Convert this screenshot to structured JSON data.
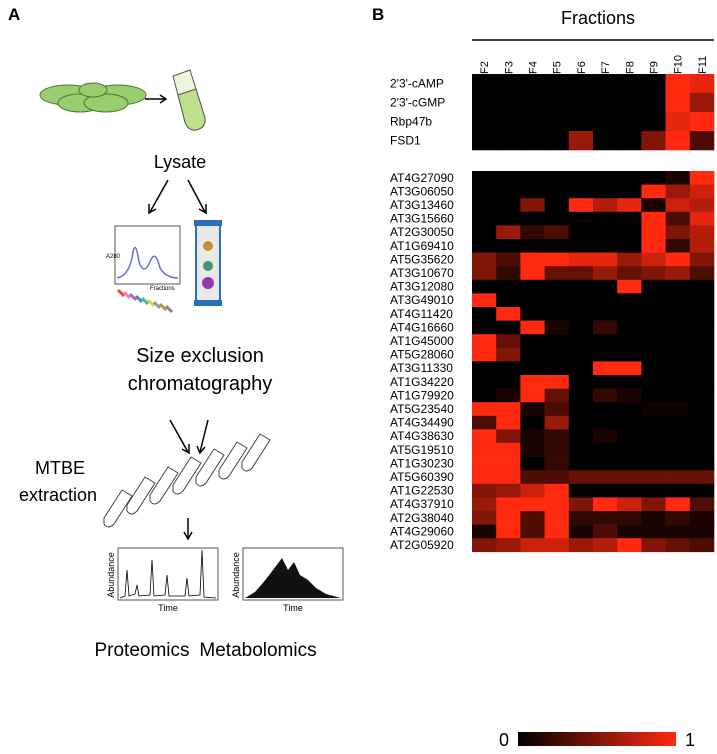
{
  "panel_a": {
    "label": "A",
    "lysate": "Lysate",
    "sec_line1": "Size exclusion",
    "sec_line2": "chromatography",
    "mtbe_line1": "MTBE",
    "mtbe_line2": "extraction",
    "fractions_small": "Fractions",
    "a280": "A280",
    "abundance_1": "Abundance",
    "time_1": "Time",
    "abundance_2": "Abundance",
    "time_2": "Time",
    "proteomics": "Proteomics",
    "metabolomics": "Metabolomics"
  },
  "chart_data": {
    "type": "heatmap",
    "panel_label": "B",
    "title": "Fractions",
    "categories": [
      "F2",
      "F3",
      "F4",
      "F5",
      "F6",
      "F7",
      "F8",
      "F9",
      "F10",
      "F11"
    ],
    "colors": [
      "#000000",
      "#ff2a10"
    ],
    "colorbar": {
      "lim": [
        0,
        1
      ],
      "ticks": [
        0,
        1
      ]
    },
    "row_groups": [
      {
        "rows": [
          "2'3'-cAMP",
          "2'3'-cGMP",
          "Rbp47b",
          "FSD1"
        ],
        "values": [
          [
            0,
            0,
            0,
            0,
            0,
            0,
            0,
            0,
            1,
            0.9
          ],
          [
            0,
            0,
            0,
            0,
            0,
            0,
            0,
            0,
            1,
            0.6
          ],
          [
            0,
            0,
            0,
            0,
            0,
            0,
            0,
            0,
            0.9,
            1
          ],
          [
            0,
            0,
            0,
            0,
            0.6,
            0,
            0,
            0.5,
            1,
            0.3
          ]
        ]
      },
      {
        "rows": [
          "AT4G27090",
          "AT3G06050",
          "AT3G13460",
          "AT3G15660",
          "AT2G30050",
          "AT1G69410",
          "AT5G35620",
          "AT3G10670",
          "AT3G12080",
          "AT3G49010",
          "AT4G11420",
          "AT4G16660",
          "AT1G45000",
          "AT5G28060",
          "AT3G11330",
          "AT1G34220",
          "AT1G79920",
          "AT5G23540",
          "AT4G34490",
          "AT4G38630",
          "AT5G19510",
          "AT1G30230",
          "AT5G60390",
          "AT1G22530",
          "AT4G37910",
          "AT2G38040",
          "AT4G29060",
          "AT2G05920"
        ],
        "values": [
          [
            0,
            0,
            0,
            0,
            0,
            0,
            0,
            0,
            0.1,
            1
          ],
          [
            0,
            0,
            0,
            0,
            0,
            0,
            0,
            1,
            0.6,
            0.8
          ],
          [
            0,
            0,
            0.5,
            0,
            1,
            0.7,
            0.9,
            0.1,
            0.8,
            0.7
          ],
          [
            0,
            0,
            0,
            0,
            0,
            0,
            0,
            1,
            0.3,
            0.9
          ],
          [
            0,
            0.6,
            0.2,
            0.3,
            0,
            0,
            0,
            1,
            0.5,
            0.7
          ],
          [
            0,
            0,
            0,
            0,
            0,
            0,
            0,
            1,
            0.2,
            0.7
          ],
          [
            0.5,
            0.3,
            1,
            1,
            0.9,
            0.9,
            0.6,
            0.8,
            1,
            0.5
          ],
          [
            0.5,
            0.2,
            1,
            0.4,
            0.4,
            0.6,
            0.4,
            0.5,
            0.6,
            0.3
          ],
          [
            0,
            0,
            0,
            0,
            0,
            0,
            1,
            0,
            0,
            0
          ],
          [
            1,
            0,
            0,
            0,
            0,
            0,
            0,
            0,
            0,
            0
          ],
          [
            0,
            1,
            0,
            0,
            0,
            0,
            0,
            0,
            0,
            0
          ],
          [
            0,
            0,
            1,
            0.1,
            0,
            0.2,
            0,
            0,
            0,
            0
          ],
          [
            1,
            0.4,
            0,
            0,
            0,
            0,
            0,
            0,
            0,
            0
          ],
          [
            1,
            0.5,
            0,
            0,
            0,
            0,
            0,
            0,
            0,
            0
          ],
          [
            0,
            0,
            0,
            0,
            0,
            1,
            1,
            0,
            0,
            0
          ],
          [
            0,
            0,
            1,
            1,
            0,
            0,
            0,
            0,
            0,
            0
          ],
          [
            0,
            0.1,
            1,
            0.4,
            0,
            0.2,
            0.1,
            0,
            0,
            0
          ],
          [
            1,
            1,
            0.1,
            0.3,
            0,
            0,
            0,
            0.05,
            0.05,
            0
          ],
          [
            0.3,
            1,
            0,
            0.6,
            0,
            0,
            0,
            0,
            0,
            0
          ],
          [
            1,
            0.5,
            0.1,
            0.2,
            0,
            0.1,
            0,
            0,
            0,
            0
          ],
          [
            1,
            1,
            0.1,
            0.2,
            0,
            0,
            0,
            0,
            0,
            0
          ],
          [
            1,
            1,
            0,
            0.2,
            0,
            0,
            0,
            0,
            0,
            0
          ],
          [
            1,
            1,
            0.3,
            0.3,
            0.4,
            0.4,
            0.4,
            0.4,
            0.4,
            0.4
          ],
          [
            0.5,
            0.6,
            0.8,
            1,
            0,
            0,
            0,
            0,
            0,
            0
          ],
          [
            0.6,
            1,
            1,
            1,
            0.5,
            1,
            0.8,
            0.5,
            1,
            0.3
          ],
          [
            0.5,
            1,
            0.3,
            1,
            0.2,
            0.2,
            0.2,
            0.1,
            0.2,
            0.1
          ],
          [
            0.1,
            1,
            0.3,
            1,
            0.1,
            0.3,
            0.1,
            0.1,
            0.1,
            0.1
          ],
          [
            0.5,
            0.6,
            0.8,
            0.8,
            0.6,
            0.7,
            1,
            0.5,
            0.4,
            0.3
          ]
        ]
      }
    ]
  }
}
